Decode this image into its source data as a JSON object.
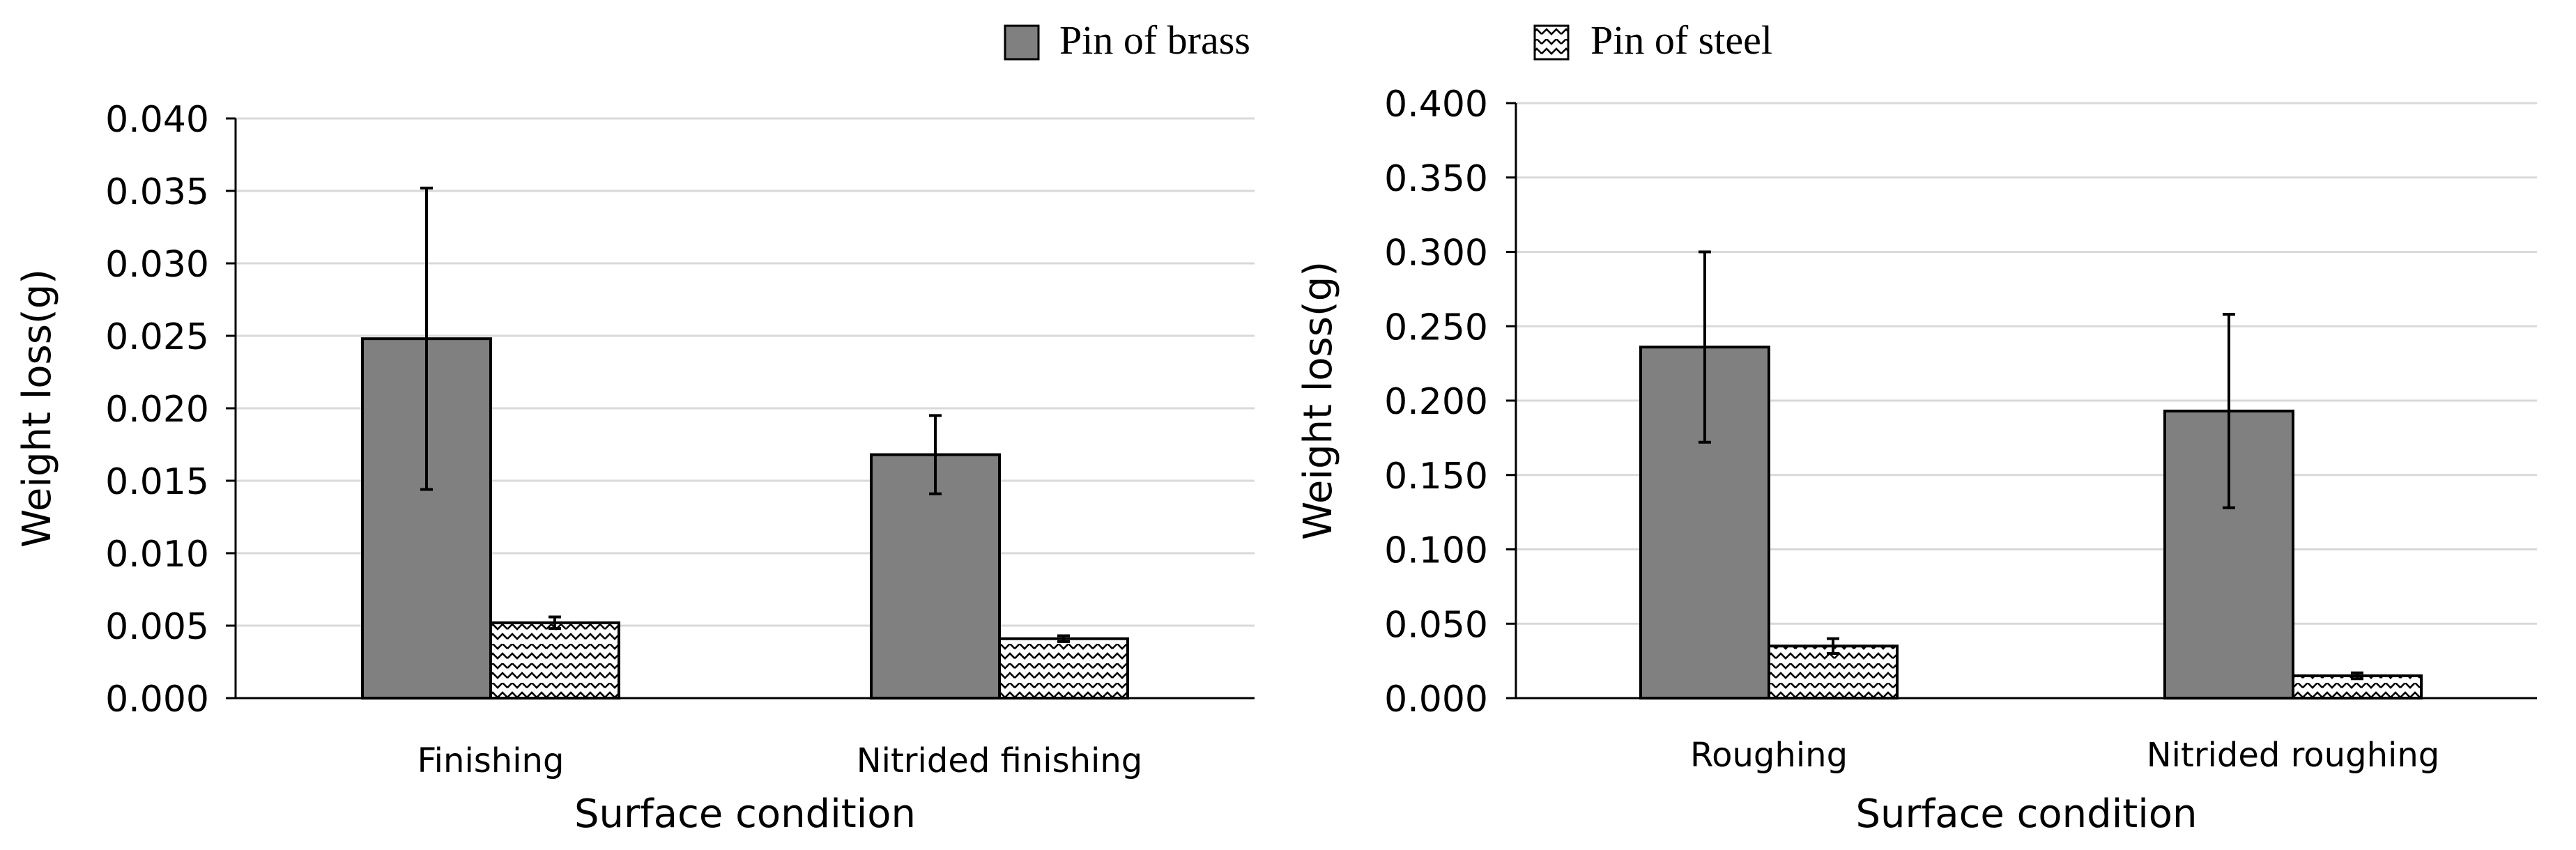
{
  "legend": {
    "placement": "top-center",
    "items": [
      {
        "label": "Pin of brass",
        "fill": "solid-gray"
      },
      {
        "label": "Pin of steel",
        "fill": "hatched"
      }
    ]
  },
  "colors": {
    "brass_fill": "#808080",
    "steel_fill": "#ffffff",
    "bar_stroke": "#000000",
    "grid": "#d9d9d9",
    "axis": "#000000",
    "text": "#000000"
  },
  "chart_data": [
    {
      "type": "bar",
      "title": "",
      "xlabel": "Surface condition",
      "ylabel": "Weight loss(g)",
      "ylim": [
        0,
        0.04
      ],
      "yticks": [
        "0.000",
        "0.005",
        "0.010",
        "0.015",
        "0.020",
        "0.025",
        "0.030",
        "0.035",
        "0.040"
      ],
      "categories": [
        "Finishing",
        "Nitrided finishing"
      ],
      "grid": true,
      "series": [
        {
          "name": "Pin of brass",
          "values": [
            0.0248,
            0.0168
          ],
          "errors": [
            0.0104,
            0.0027
          ]
        },
        {
          "name": "Pin of steel",
          "values": [
            0.0052,
            0.0041
          ],
          "errors": [
            0.0004,
            0.0002
          ]
        }
      ]
    },
    {
      "type": "bar",
      "title": "",
      "xlabel": "Surface condition",
      "ylabel": "Weight loss(g)",
      "ylim": [
        0,
        0.4
      ],
      "yticks": [
        "0.000",
        "0.050",
        "0.100",
        "0.150",
        "0.200",
        "0.250",
        "0.300",
        "0.350",
        "0.400"
      ],
      "categories": [
        "Roughing",
        "Nitrided roughing"
      ],
      "grid": true,
      "series": [
        {
          "name": "Pin of brass",
          "values": [
            0.236,
            0.193
          ],
          "errors": [
            0.064,
            0.065
          ]
        },
        {
          "name": "Pin of steel",
          "values": [
            0.035,
            0.015
          ],
          "errors": [
            0.005,
            0.002
          ]
        }
      ]
    }
  ]
}
